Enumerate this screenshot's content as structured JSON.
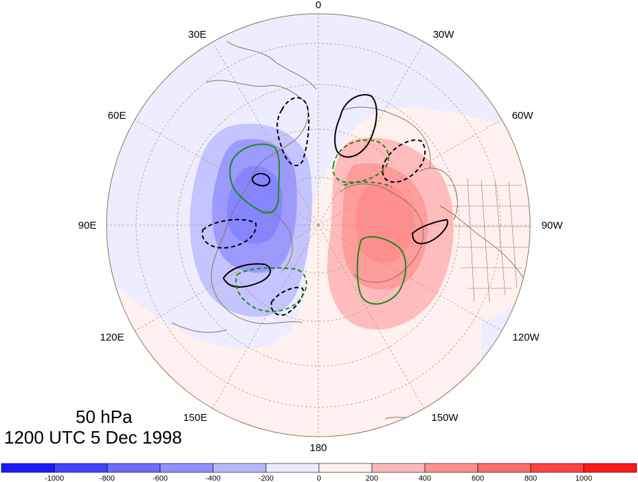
{
  "map": {
    "level_label": "50 hPa",
    "time_label": "1200 UTC 5 Dec 1998",
    "longitude_labels": {
      "l0": "0",
      "l30w": "30W",
      "l60w": "60W",
      "l90w": "90W",
      "l120w": "120W",
      "l150w": "150W",
      "l180": "180",
      "l150e": "150E",
      "l120e": "120E",
      "l90e": "90E",
      "l60e": "60E",
      "l30e": "30E"
    }
  },
  "colorbar": {
    "labels": [
      "-1000",
      "-800",
      "-600",
      "-400",
      "-200",
      "0",
      "200",
      "400",
      "600",
      "800",
      "1000"
    ],
    "colors": [
      "#1a1aff",
      "#4242ff",
      "#6b6bff",
      "#9090ff",
      "#b8b8ff",
      "#ebebff",
      "#fff0f0",
      "#ffb8b8",
      "#ff9090",
      "#ff6b6b",
      "#ff4242",
      "#ff1a1a"
    ]
  },
  "colors": {
    "coast": "#8b7355",
    "grid": "#b89a72",
    "positive_contour": "#000000",
    "negative_contour_green": "#1a8a1a"
  }
}
